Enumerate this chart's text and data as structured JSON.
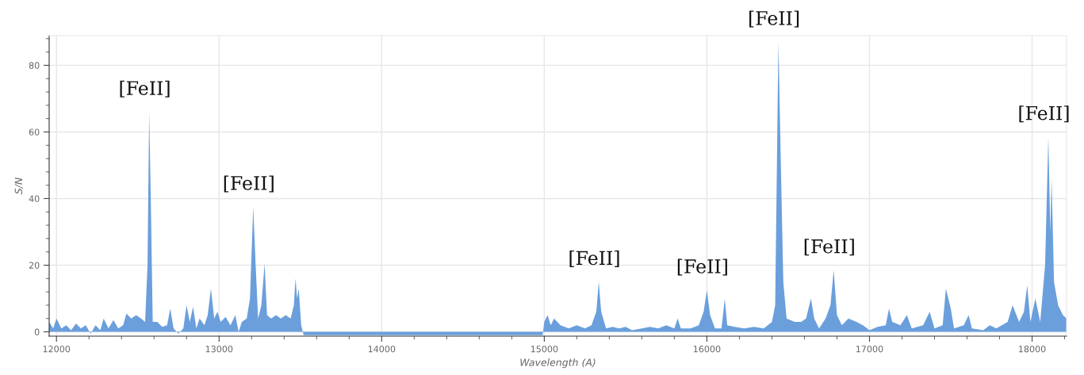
{
  "chart_data": {
    "type": "area",
    "xlabel": "Wavelength (A)",
    "ylabel": "S/N",
    "xlim": [
      11955,
      18212
    ],
    "ylim": [
      -1.3,
      88.9
    ],
    "xticks": [
      12000,
      13000,
      14000,
      15000,
      16000,
      17000,
      18000
    ],
    "yticks": [
      0,
      20,
      40,
      60,
      80
    ],
    "grid": true,
    "series": [
      {
        "color": "#6a9fdc",
        "x": [
          11955,
          11980,
          12000,
          12030,
          12060,
          12090,
          12120,
          12150,
          12180,
          12210,
          12240,
          12270,
          12290,
          12320,
          12350,
          12380,
          12410,
          12430,
          12460,
          12490,
          12520,
          12545,
          12560,
          12570,
          12580,
          12592,
          12620,
          12650,
          12680,
          12700,
          12720,
          12750,
          12780,
          12800,
          12820,
          12840,
          12860,
          12880,
          12910,
          12930,
          12950,
          12970,
          12990,
          13010,
          13040,
          13070,
          13100,
          13120,
          13140,
          13170,
          13190,
          13210,
          13225,
          13240,
          13260,
          13280,
          13295,
          13320,
          13350,
          13380,
          13410,
          13440,
          13460,
          13470,
          13480,
          13490,
          13505,
          13520,
          14000,
          14500,
          14990,
          15000,
          15020,
          15040,
          15060,
          15100,
          15150,
          15200,
          15250,
          15290,
          15320,
          15335,
          15350,
          15380,
          15420,
          15460,
          15500,
          15540,
          15600,
          15650,
          15700,
          15750,
          15800,
          15820,
          15840,
          15900,
          15950,
          15980,
          16000,
          16020,
          16050,
          16090,
          16110,
          16125,
          16170,
          16230,
          16290,
          16350,
          16400,
          16420,
          16440,
          16455,
          16470,
          16490,
          16540,
          16580,
          16610,
          16640,
          16660,
          16690,
          16730,
          16760,
          16780,
          16800,
          16830,
          16870,
          16920,
          16960,
          17000,
          17050,
          17100,
          17120,
          17140,
          17190,
          17230,
          17260,
          17330,
          17370,
          17400,
          17450,
          17470,
          17500,
          17520,
          17580,
          17610,
          17630,
          17700,
          17740,
          17780,
          17850,
          17880,
          17920,
          17950,
          17970,
          17990,
          18020,
          18050,
          18080,
          18100,
          18112,
          18120,
          18135,
          18160,
          18190,
          18212
        ],
        "values": [
          3,
          1,
          4,
          1,
          2,
          0.5,
          2.5,
          1,
          2,
          -0.5,
          2,
          0.5,
          4,
          1,
          3.5,
          1,
          2,
          5.5,
          4,
          5,
          4,
          3,
          20,
          66,
          40,
          3,
          3,
          1.5,
          2,
          7,
          1,
          -0.5,
          1,
          8,
          3,
          7.5,
          1,
          4,
          2,
          5,
          13,
          4,
          6,
          3,
          4.5,
          2,
          5,
          0,
          3,
          4,
          10,
          37.5,
          20,
          4,
          8,
          20.5,
          5,
          4,
          5,
          4,
          5,
          4,
          8,
          16,
          10,
          13,
          2,
          -1,
          -1,
          -1,
          -1,
          3,
          5,
          2,
          4,
          2,
          1,
          2,
          1,
          2,
          6,
          15,
          6,
          1,
          1.5,
          1,
          1.5,
          0.5,
          1,
          1.5,
          1,
          2,
          1,
          4,
          1,
          1,
          2,
          6,
          12.5,
          5,
          1,
          1,
          10,
          2,
          1.5,
          1,
          1.5,
          1,
          3,
          8,
          87,
          50,
          15,
          4,
          3,
          3,
          4,
          10,
          4,
          1,
          4,
          8,
          18.5,
          5,
          2,
          4,
          3,
          2,
          0.5,
          1.5,
          2,
          7,
          3,
          2,
          5,
          1,
          2,
          6,
          1,
          2,
          13,
          7,
          1,
          2,
          5,
          1,
          0.5,
          2,
          1,
          3,
          8,
          3,
          6,
          14,
          3,
          10,
          3,
          20,
          58.5,
          30,
          46,
          15,
          8,
          5,
          4
        ]
      }
    ],
    "annotations": [
      {
        "text": "[FeII]",
        "x": 12570,
        "y": 66
      },
      {
        "text": "[FeII]",
        "x": 13210,
        "y": 37.5
      },
      {
        "text": "[FeII]",
        "x": 15335,
        "y": 15
      },
      {
        "text": "[FeII]",
        "x": 16000,
        "y": 12.5
      },
      {
        "text": "[FeII]",
        "x": 16440,
        "y": 87
      },
      {
        "text": "[FeII]",
        "x": 16780,
        "y": 18.5
      },
      {
        "text": "[FeII]",
        "x": 18100,
        "y": 58.5
      }
    ]
  }
}
